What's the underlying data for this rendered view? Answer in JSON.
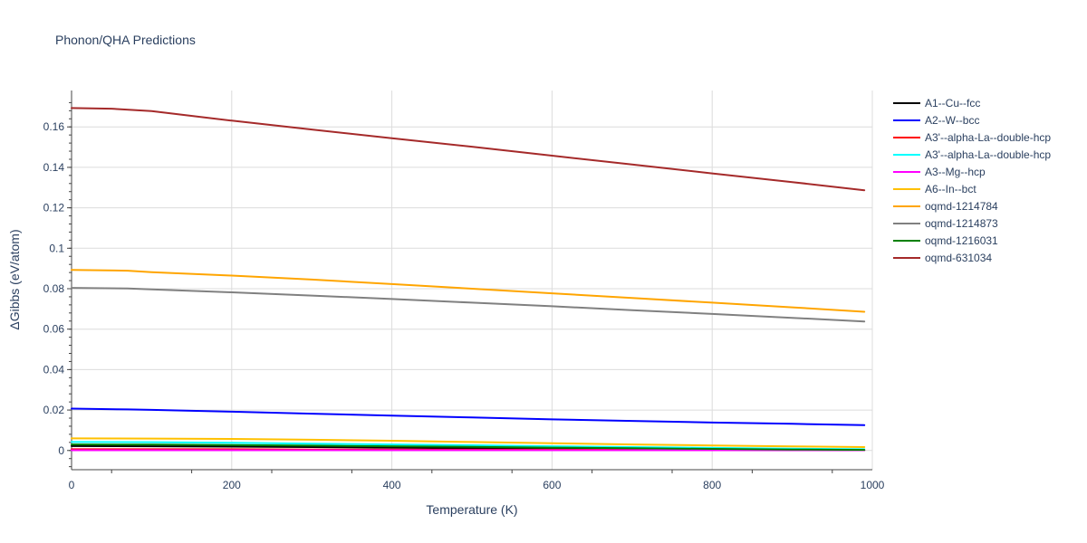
{
  "chart_data": {
    "type": "line",
    "title": "Phonon/QHA Predictions",
    "xlabel": "Temperature (K)",
    "ylabel": "ΔGibbs (eV/atom)",
    "xlim": [
      0,
      1000
    ],
    "ylim": [
      -0.0095,
      0.178
    ],
    "x_ticks": [
      0,
      200,
      400,
      600,
      800,
      1000
    ],
    "y_ticks": [
      0,
      0.02,
      0.04,
      0.06,
      0.08,
      0.1,
      0.12,
      0.14,
      0.16
    ],
    "y_tick_labels": [
      "0",
      "0.02",
      "0.04",
      "0.06",
      "0.08",
      "0.1",
      "0.12",
      "0.14",
      "0.16"
    ],
    "grid": true,
    "legend_position": "right",
    "series": [
      {
        "name": "A1--Cu--fcc",
        "color": "#000000",
        "x": [
          0,
          100,
          200,
          300,
          400,
          500,
          600,
          700,
          800,
          900,
          990
        ],
        "y": [
          0.0022,
          0.0021,
          0.0019,
          0.0017,
          0.0014,
          0.0011,
          0.0009,
          0.0007,
          0.0005,
          0.0003,
          0.0001
        ]
      },
      {
        "name": "A2--W--bcc",
        "color": "#0000ff",
        "x": [
          0,
          70,
          100,
          200,
          300,
          400,
          500,
          600,
          700,
          800,
          900,
          990
        ],
        "y": [
          0.0207,
          0.0203,
          0.0201,
          0.0192,
          0.0182,
          0.0172,
          0.0163,
          0.0154,
          0.0146,
          0.0138,
          0.0132,
          0.0125
        ]
      },
      {
        "name": "A3'--alpha-La--double-hcp",
        "color": "#ff0000",
        "x": [
          0,
          100,
          200,
          300,
          400,
          500,
          600,
          700,
          800,
          900,
          990
        ],
        "y": [
          0.0006,
          0.0006,
          0.0006,
          0.0005,
          0.0005,
          0.0004,
          0.0004,
          0.0003,
          0.0003,
          0.0002,
          0.0002
        ]
      },
      {
        "name": "A3'--alpha-La--double-hcp",
        "color": "#00ffff",
        "x": [
          0,
          100,
          200,
          300,
          400,
          500,
          600,
          700,
          800,
          900,
          990
        ],
        "y": [
          0.0042,
          0.0041,
          0.0038,
          0.0034,
          0.003,
          0.0026,
          0.0021,
          0.0017,
          0.0013,
          0.0009,
          0.0006
        ]
      },
      {
        "name": "A3--Mg--hcp",
        "color": "#ff00ff",
        "x": [
          0,
          100,
          200,
          300,
          400,
          500,
          600,
          700,
          800,
          900,
          990
        ],
        "y": [
          0.0001,
          0.0001,
          0.0001,
          0.0001,
          0.0001,
          0.0001,
          0.0001,
          0.0001,
          0.0001,
          0.0001,
          0.0001
        ]
      },
      {
        "name": "A6--In--bct",
        "color": "#ffc000",
        "x": [
          0,
          100,
          200,
          300,
          400,
          500,
          600,
          700,
          800,
          900,
          990
        ],
        "y": [
          0.006,
          0.0059,
          0.0057,
          0.0053,
          0.0048,
          0.0042,
          0.0036,
          0.003,
          0.0025,
          0.002,
          0.0017
        ]
      },
      {
        "name": "oqmd-1214784",
        "color": "#ffa500",
        "x": [
          0,
          70,
          100,
          200,
          300,
          400,
          500,
          600,
          700,
          800,
          900,
          990
        ],
        "y": [
          0.0893,
          0.0889,
          0.0882,
          0.0865,
          0.0845,
          0.0823,
          0.08,
          0.0777,
          0.0754,
          0.0731,
          0.0708,
          0.0686
        ]
      },
      {
        "name": "oqmd-1214873",
        "color": "#808080",
        "x": [
          0,
          70,
          100,
          200,
          300,
          400,
          500,
          600,
          700,
          800,
          900,
          990
        ],
        "y": [
          0.0804,
          0.0801,
          0.0797,
          0.0782,
          0.0766,
          0.0749,
          0.0731,
          0.0713,
          0.0694,
          0.0675,
          0.0656,
          0.0638
        ]
      },
      {
        "name": "oqmd-1216031",
        "color": "#008000",
        "x": [
          0,
          100,
          200,
          300,
          400,
          500,
          600,
          700,
          800,
          900,
          990
        ],
        "y": [
          0.003,
          0.0029,
          0.0027,
          0.0024,
          0.0021,
          0.0018,
          0.0014,
          0.0011,
          0.0008,
          0.0005,
          0.0003
        ]
      },
      {
        "name": "oqmd-631034",
        "color": "#a52a2a",
        "x": [
          0,
          50,
          100,
          200,
          300,
          400,
          500,
          600,
          700,
          800,
          900,
          990
        ],
        "y": [
          0.1693,
          0.169,
          0.1678,
          0.1631,
          0.1587,
          0.1544,
          0.1502,
          0.1458,
          0.1414,
          0.137,
          0.1327,
          0.1287
        ]
      }
    ]
  }
}
